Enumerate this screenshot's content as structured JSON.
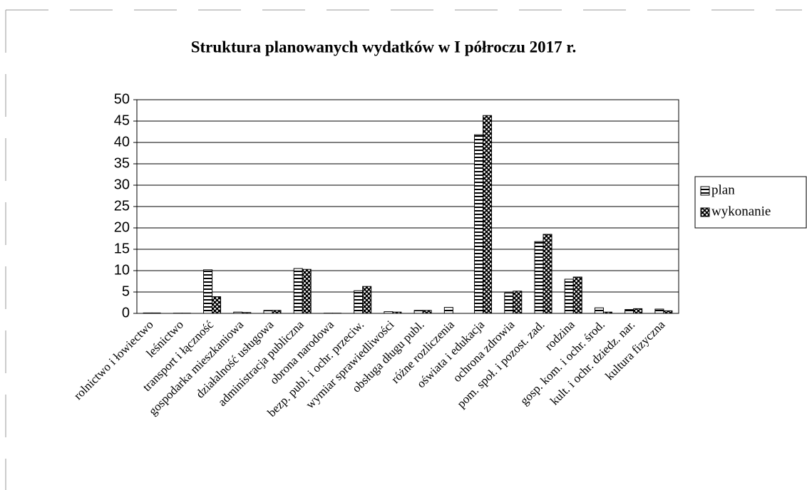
{
  "chart_data": {
    "type": "bar",
    "title": "Struktura planowanych wydatków w I półroczu 2017 r.",
    "categories": [
      "rolnictwo i łowiectwo",
      "leśnictwo",
      "transport i łączność",
      "gospodarka mieszkaniowa",
      "działalność usługowa",
      "administracja publiczna",
      "obrona narodowa",
      "bezp. publ. i ochr. przeciw.",
      "wymiar sprawiedliwości",
      "obsługa długu publ.",
      "różne rozliczenia",
      "oświata i edukacja",
      "ochrona zdrowia",
      "pom. społ. i pozost. zad.",
      "rodzina",
      "gosp. kom. i ochr. środ.",
      "kult. i ochr. dziedz. nar.",
      "kultura fizyczna"
    ],
    "series": [
      {
        "name": "plan",
        "color": "#000000",
        "values": [
          0.1,
          0.05,
          10.2,
          0.3,
          0.7,
          10.5,
          0.05,
          5.3,
          0.4,
          0.7,
          1.4,
          41.8,
          4.8,
          16.8,
          8.0,
          1.3,
          0.9,
          1.0
        ]
      },
      {
        "name": "wykonanie",
        "color": "#000000",
        "values": [
          0.1,
          0.05,
          3.9,
          0.2,
          0.7,
          10.3,
          0.05,
          6.3,
          0.3,
          0.7,
          0,
          46.3,
          5.2,
          18.5,
          8.5,
          0.3,
          1.1,
          0.6
        ]
      }
    ],
    "ylim": [
      0,
      50
    ],
    "yticks": [
      0,
      5,
      10,
      15,
      20,
      25,
      30,
      35,
      40,
      45,
      50
    ],
    "grid": true,
    "legend": "right"
  }
}
